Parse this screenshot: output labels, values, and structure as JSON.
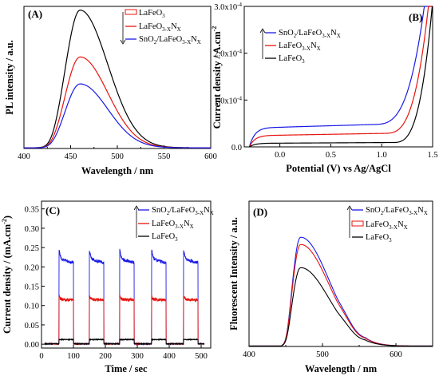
{
  "chart_data": [
    {
      "type": "line",
      "panel_label": "(A)",
      "xlabel": "Wavelength / nm",
      "ylabel": "PL intensity / a.u.",
      "xlim": [
        400,
        600
      ],
      "ylim": [
        0,
        1.0
      ],
      "x_ticks": [
        "400",
        "450",
        "500",
        "550",
        "600"
      ],
      "y_ticks": [],
      "legend_position": "top-right",
      "peak_x": 460,
      "series": [
        {
          "name": "LaFeO",
          "name_sub": "3",
          "name_tail": "",
          "color": "#000000",
          "peak": 0.97
        },
        {
          "name": "LaFeO",
          "name_sub": "3-X",
          "name_tail": "N",
          "name_tail_sub": "X",
          "color": "#e8140f",
          "peak": 0.64
        },
        {
          "name": "SnO",
          "name_sub": "2",
          "name_tail": "/LaFeO",
          "name_tail_sub": "3-X",
          "name_end": "N",
          "name_end_sub": "X",
          "color": "#1a1ae6",
          "peak": 0.45
        }
      ]
    },
    {
      "type": "line",
      "panel_label": "(B)",
      "xlabel": "Potential (V) vs Ag/AgCl",
      "ylabel": "Current density / A.cm",
      "ylabel_sup": "-2",
      "xlim": [
        -0.35,
        1.5
      ],
      "ylim": [
        0,
        0.0003
      ],
      "x_ticks": [
        "0.0",
        "0.5",
        "1.0",
        "1.5"
      ],
      "y_ticks": [
        "0.0",
        "1.0x10",
        "2.0x10",
        "3.0x10"
      ],
      "y_tick_exp": "-4",
      "legend_position": "top-left",
      "series": [
        {
          "name": "SnO2/LaFeO3-XNX",
          "color": "#1a1ae6",
          "plateau": 4.2e-05
        },
        {
          "name": "LaFeO3-XNX",
          "color": "#e8140f",
          "plateau": 2.5e-05
        },
        {
          "name": "LaFeO3",
          "color": "#000000",
          "plateau": 8e-06
        }
      ]
    },
    {
      "type": "line",
      "panel_label": "(C)",
      "xlabel": "Time / sec",
      "ylabel": "Current density / (mA.cm",
      "ylabel_sup": "-2",
      "ylabel_tail": ")",
      "xlim": [
        0,
        530
      ],
      "ylim": [
        -0.01,
        0.37
      ],
      "x_ticks": [
        "0",
        "100",
        "200",
        "300",
        "400",
        "500"
      ],
      "y_ticks": [
        "0.00",
        "0.05",
        "0.10",
        "0.15",
        "0.20",
        "0.25",
        "0.30",
        "0.35"
      ],
      "legend_position": "top-right",
      "on_intervals": [
        [
          55,
          100
        ],
        [
          150,
          195
        ],
        [
          245,
          290
        ],
        [
          345,
          390
        ],
        [
          445,
          490
        ]
      ],
      "series": [
        {
          "name": "SnO2/LaFeO3-XNX",
          "color": "#1a1ae6",
          "on_value": 0.22
        },
        {
          "name": "LaFeO3-XNX",
          "color": "#e8140f",
          "on_value": 0.115
        },
        {
          "name": "LaFeO3",
          "color": "#000000",
          "on_value": 0.012
        }
      ]
    },
    {
      "type": "line",
      "panel_label": "(D)",
      "xlabel": "Wavelength / nm",
      "ylabel": "Fluorescent Intensity / a.u.",
      "xlim": [
        400,
        650
      ],
      "ylim": [
        0,
        1.0
      ],
      "x_ticks": [
        "400",
        "500",
        "600"
      ],
      "y_ticks": [],
      "legend_position": "top-right",
      "peak_x": 470,
      "series": [
        {
          "name": "SnO2/LaFeO3-XNX",
          "color": "#1a1ae6",
          "peak": 0.75
        },
        {
          "name": "LaFeO3-XNX",
          "color": "#e8140f",
          "peak": 0.7
        },
        {
          "name": "LaFeO3",
          "color": "#000000",
          "peak": 0.54
        }
      ]
    }
  ]
}
